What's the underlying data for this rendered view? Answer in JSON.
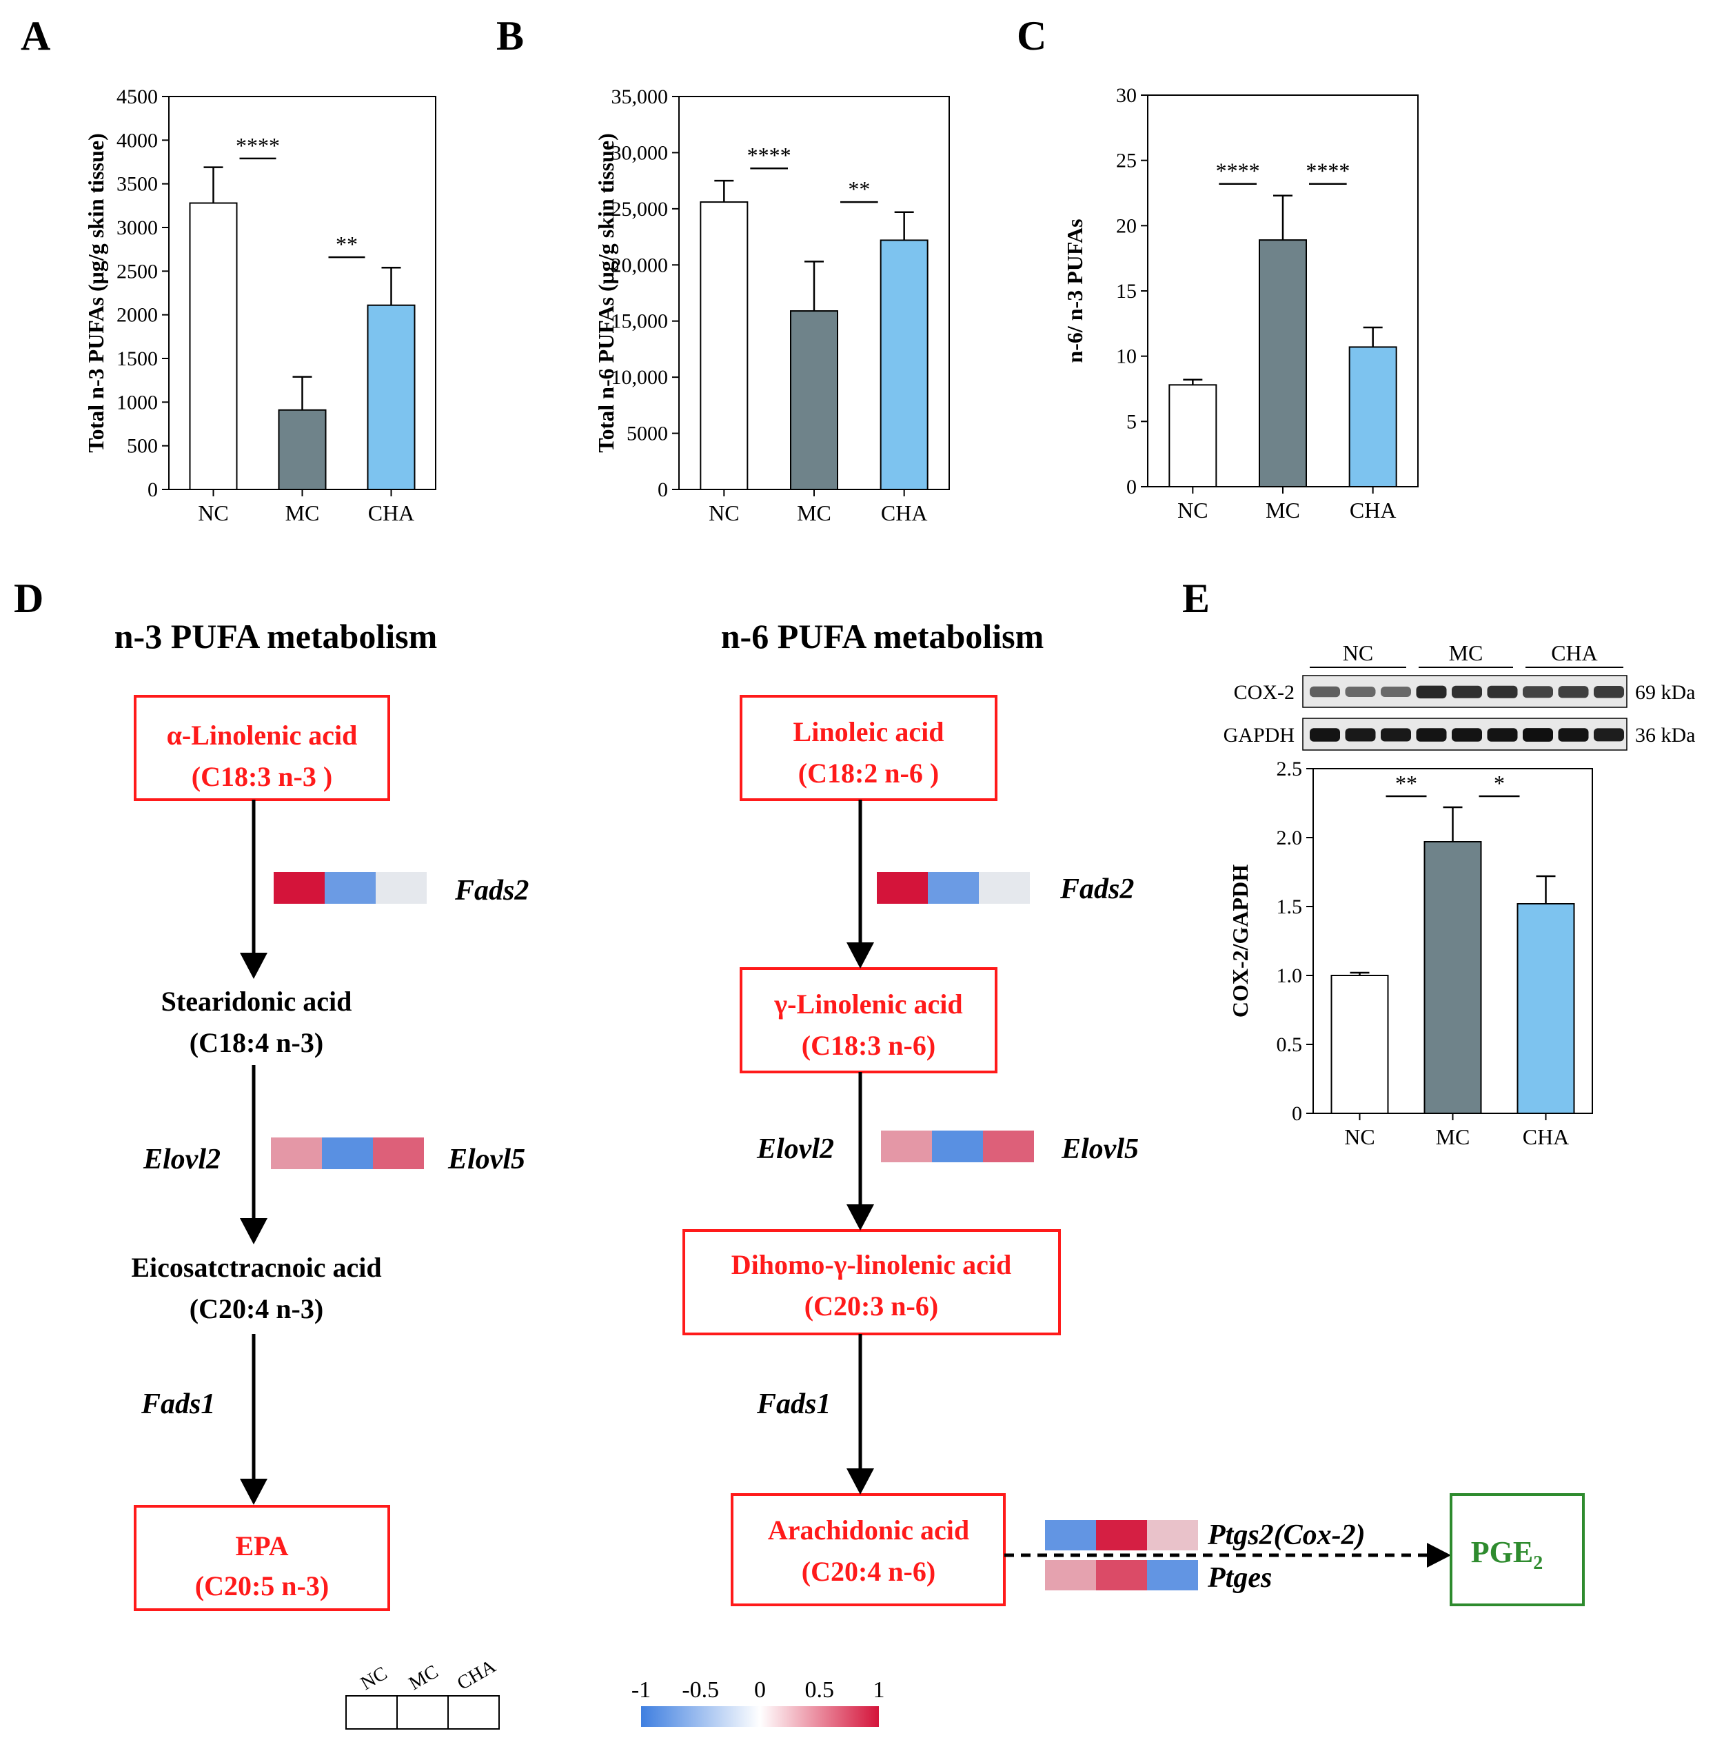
{
  "panel_letters": {
    "a": "A",
    "b": "B",
    "c": "C",
    "d": "D",
    "e": "E"
  },
  "colors": {
    "nc": "#ffffff",
    "mc": "#6f838a",
    "cha": "#7dc3ef",
    "red": "#ff1a1a",
    "green": "#2e8b2e",
    "black": "#000000"
  },
  "chart_data": [
    {
      "id": "A",
      "type": "bar",
      "ylabel": "Total n-3 PUFAs (μg/g skin tissue)",
      "categories": [
        "NC",
        "MC",
        "CHA"
      ],
      "values": [
        3280,
        910,
        2110
      ],
      "errors": [
        410,
        380,
        430
      ],
      "ylim": [
        0,
        4500
      ],
      "yticks": [
        0,
        500,
        1000,
        1500,
        2000,
        2500,
        3000,
        3500,
        4000,
        4500
      ],
      "ytick_labels": [
        "0",
        "500",
        "1000",
        "1500",
        "2000",
        "2500",
        "3000",
        "3500",
        "4000",
        "4500"
      ],
      "significance": [
        {
          "from": 0,
          "to": 1,
          "label": "****",
          "y": 3790
        },
        {
          "from": 1,
          "to": 2,
          "label": "**",
          "y": 2660
        }
      ]
    },
    {
      "id": "B",
      "type": "bar",
      "ylabel": "Total n-6 PUFAs (μg/g skin tissue)",
      "categories": [
        "NC",
        "MC",
        "CHA"
      ],
      "values": [
        25600,
        15900,
        22200
      ],
      "errors": [
        1900,
        4400,
        2500
      ],
      "ylim": [
        0,
        35000
      ],
      "yticks": [
        0,
        5000,
        10000,
        15000,
        20000,
        25000,
        30000,
        35000
      ],
      "ytick_labels": [
        "0",
        "5000",
        "10,000",
        "15,000",
        "20,000",
        "25,000",
        "30,000",
        "35,000"
      ],
      "significance": [
        {
          "from": 0,
          "to": 1,
          "label": "****",
          "y": 28600
        },
        {
          "from": 1,
          "to": 2,
          "label": "**",
          "y": 25600
        }
      ]
    },
    {
      "id": "C",
      "type": "bar",
      "ylabel": "n-6/ n-3 PUFAs",
      "categories": [
        "NC",
        "MC",
        "CHA"
      ],
      "values": [
        7.8,
        18.9,
        10.7
      ],
      "errors": [
        0.4,
        3.4,
        1.5
      ],
      "ylim": [
        0,
        30
      ],
      "yticks": [
        0,
        5,
        10,
        15,
        20,
        25,
        30
      ],
      "ytick_labels": [
        "0",
        "5",
        "10",
        "15",
        "20",
        "25",
        "30"
      ],
      "significance": [
        {
          "from": 0,
          "to": 1,
          "label": "****",
          "y": 23.2
        },
        {
          "from": 1,
          "to": 2,
          "label": "****",
          "y": 23.2
        }
      ]
    },
    {
      "id": "E",
      "type": "bar",
      "ylabel": "COX-2/GAPDH",
      "categories": [
        "NC",
        "MC",
        "CHA"
      ],
      "values": [
        1.0,
        1.97,
        1.52
      ],
      "errors": [
        0.02,
        0.25,
        0.2
      ],
      "ylim": [
        0,
        2.5
      ],
      "yticks": [
        0,
        0.5,
        1.0,
        1.5,
        2.0,
        2.5
      ],
      "ytick_labels": [
        "0",
        "0.5",
        "1.0",
        "1.5",
        "2.0",
        "2.5"
      ],
      "significance": [
        {
          "from": 0,
          "to": 1,
          "label": "**",
          "y": 2.3
        },
        {
          "from": 1,
          "to": 2,
          "label": "*",
          "y": 2.3
        }
      ]
    }
  ],
  "pathway": {
    "n3_title": "n-3 PUFA metabolism",
    "n6_title": "n-6 PUFA metabolism",
    "n3": {
      "ala": {
        "name": "α-Linolenic acid",
        "formula": "(C18:3 n-3 )"
      },
      "sda": {
        "name": "Stearidonic acid",
        "formula": "(C18:4 n-3)"
      },
      "eta": {
        "name": "Eicosatctracnoic acid",
        "formula": "(C20:4 n-3)"
      },
      "epa": {
        "name": "EPA",
        "formula": "(C20:5 n-3)"
      }
    },
    "n6": {
      "la": {
        "name": "Linoleic acid",
        "formula": "(C18:2 n-6 )"
      },
      "gla": {
        "name": "γ-Linolenic acid",
        "formula": "(C18:3 n-6)"
      },
      "dgla": {
        "name": "Dihomo-γ-linolenic acid",
        "formula": "(C20:3 n-6)"
      },
      "aa": {
        "name": "Arachidonic acid",
        "formula": "(C20:4 n-6)"
      }
    },
    "pge2": {
      "base": "PGE",
      "sub": "2"
    },
    "genes": {
      "fads2": "Fads2",
      "elovl2": "Elovl2",
      "elovl5": "Elovl5",
      "fads1": "Fads1",
      "ptgs2": "Ptgs2(Cox-2)",
      "ptges": "Ptges"
    },
    "heat": {
      "fads2": [
        1.0,
        -0.75,
        -0.05
      ],
      "elovl": [
        0.4,
        -0.85,
        0.65
      ],
      "ptgs2": [
        -0.8,
        0.95,
        0.2
      ],
      "ptges": [
        0.35,
        0.75,
        -0.8
      ]
    }
  },
  "heat_legend": {
    "groups": [
      "NC",
      "MC",
      "CHA"
    ],
    "scale_labels": [
      "-1",
      "-0.5",
      "0",
      "0.5",
      "1"
    ],
    "scale_values": [
      -1,
      -0.5,
      0,
      0.5,
      1
    ]
  },
  "western": {
    "groups": [
      "NC",
      "MC",
      "CHA"
    ],
    "rows": [
      {
        "label": "COX-2",
        "kda": "69 kDa",
        "intensity": [
          0.55,
          0.5,
          0.5,
          0.85,
          0.8,
          0.8,
          0.7,
          0.72,
          0.75
        ]
      },
      {
        "label": "GAPDH",
        "kda": "36 kDa",
        "intensity": [
          0.95,
          0.92,
          0.92,
          0.95,
          0.95,
          0.95,
          0.97,
          0.95,
          0.9
        ]
      }
    ]
  }
}
